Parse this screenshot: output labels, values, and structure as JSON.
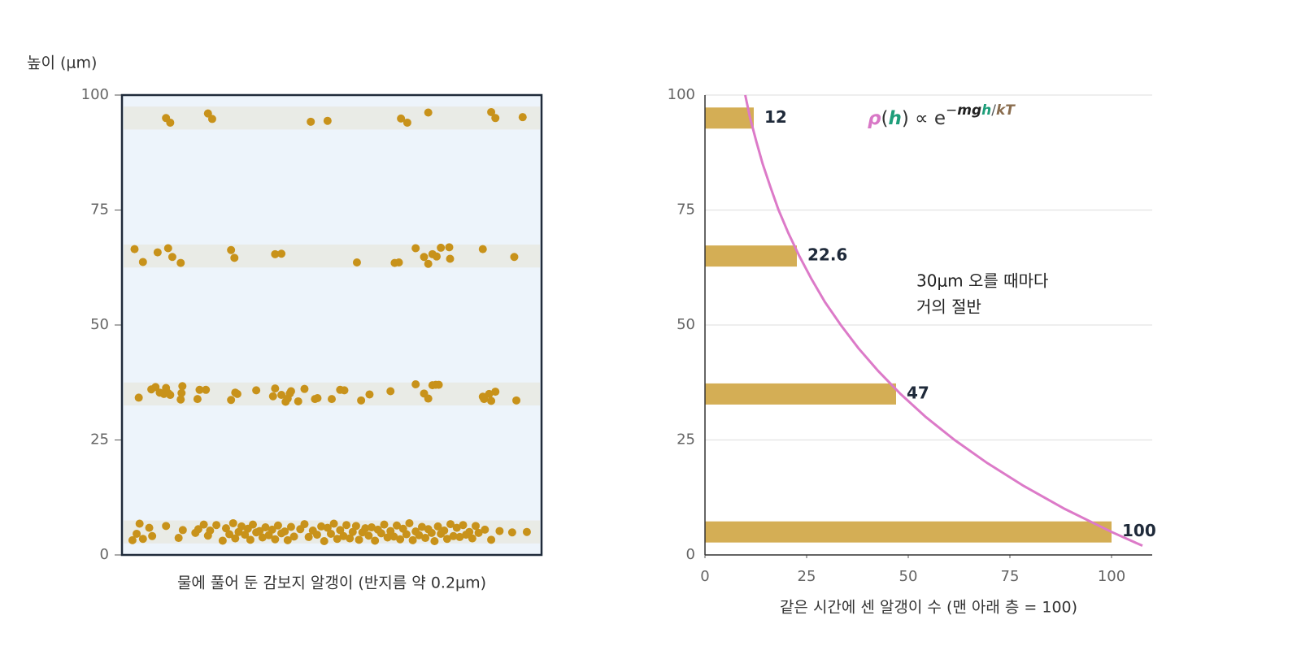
{
  "chart_data": [
    {
      "type": "scatter",
      "ylabel": "높이 (μm)",
      "xlabel": "물에 풀어 둔 감보지 알갱이 (반지름 약 0.2μm)",
      "xlim": [
        0,
        100
      ],
      "ylim": [
        0,
        100
      ],
      "yticks": [
        0,
        25,
        50,
        75,
        100
      ],
      "color": "#c8921a",
      "background": "#edf4fb",
      "band_color": "#e9ebe6",
      "bands": [
        [
          2.5,
          7.5
        ],
        [
          32.5,
          37.5
        ],
        [
          62.5,
          67.5
        ],
        [
          92.5,
          97.5
        ]
      ],
      "x": [
        10.5,
        11.5,
        20.5,
        21.5,
        45,
        49,
        66.5,
        68,
        73,
        88,
        89,
        95.5,
        3,
        5,
        8.5,
        11,
        12,
        14,
        26,
        26.8,
        36.5,
        38,
        56,
        65,
        66,
        70,
        72,
        73,
        74,
        75,
        76,
        78,
        78.2,
        86,
        93.5,
        4,
        7,
        8,
        9,
        10,
        10.5,
        11,
        11.5,
        14,
        14.2,
        14.4,
        18,
        18.5,
        20,
        26,
        27,
        27.5,
        32,
        36,
        36.5,
        38,
        39,
        39.5,
        40,
        40.3,
        42,
        43.5,
        46,
        46.6,
        50,
        52,
        53,
        57,
        59,
        64,
        70,
        72,
        73,
        74,
        74.8,
        75.5,
        86,
        86.3,
        87.5,
        88,
        89,
        94,
        2.5,
        3.5,
        4.2,
        5.0,
        6.5,
        7.2,
        10.5,
        13.5,
        14.5,
        17.5,
        18.2,
        19.5,
        20.5,
        21.0,
        22.5,
        24.0,
        24.8,
        25.6,
        26.5,
        27.0,
        27.8,
        28.5,
        29.3,
        30.0,
        30.6,
        31.2,
        32.0,
        32.8,
        33.5,
        34.2,
        35.0,
        35.8,
        36.5,
        37.2,
        38.0,
        38.8,
        39.5,
        40.3,
        41.0,
        42.5,
        43.5,
        44.5,
        45.5,
        46.5,
        47.5,
        48.2,
        49.0,
        49.8,
        50.5,
        51.3,
        52.0,
        52.8,
        53.5,
        54.3,
        55.0,
        55.8,
        56.5,
        57.3,
        58.0,
        58.8,
        59.5,
        60.3,
        61.0,
        61.8,
        62.5,
        63.3,
        64.0,
        64.8,
        65.5,
        66.3,
        67.0,
        67.8,
        68.5,
        69.3,
        70.0,
        70.8,
        71.5,
        72.3,
        73.0,
        73.8,
        74.5,
        75.3,
        76.0,
        76.8,
        77.5,
        78.3,
        79.0,
        79.8,
        80.5,
        81.3,
        82.0,
        82.8,
        83.5,
        84.3,
        85.0,
        86.5,
        88.0,
        90.0,
        93.0,
        96.5
      ],
      "y": [
        95.0,
        94.0,
        96.0,
        94.8,
        94.2,
        94.4,
        94.9,
        94.0,
        96.2,
        96.3,
        95.0,
        95.2,
        66.5,
        63.7,
        65.8,
        66.7,
        64.8,
        63.5,
        66.3,
        64.6,
        65.4,
        65.5,
        63.6,
        63.5,
        63.6,
        66.7,
        64.8,
        63.3,
        65.4,
        64.9,
        66.8,
        66.9,
        64.4,
        66.5,
        64.8,
        34.2,
        36.0,
        36.5,
        35.3,
        35.0,
        36.3,
        35.2,
        34.8,
        33.8,
        35.2,
        36.7,
        33.9,
        35.9,
        35.9,
        33.7,
        35.3,
        35.0,
        35.8,
        34.5,
        36.2,
        34.8,
        33.3,
        34.0,
        35.1,
        35.6,
        33.4,
        36.1,
        33.9,
        34.1,
        33.9,
        35.9,
        35.8,
        33.6,
        34.9,
        35.6,
        37.1,
        35.1,
        34.0,
        36.9,
        37.0,
        37.0,
        34.4,
        33.9,
        35.0,
        33.5,
        35.5,
        33.6,
        3.2,
        4.6,
        6.8,
        3.5,
        5.9,
        4.1,
        6.3,
        3.7,
        5.4,
        4.8,
        5.6,
        6.6,
        4.2,
        5.3,
        6.5,
        3.1,
        5.8,
        4.5,
        6.9,
        3.6,
        5.0,
        6.2,
        4.4,
        5.7,
        3.3,
        6.6,
        4.9,
        5.2,
        3.8,
        6.0,
        4.3,
        5.5,
        3.4,
        6.4,
        4.7,
        5.1,
        3.2,
        6.1,
        4.0,
        5.6,
        6.7,
        3.9,
        5.3,
        4.4,
        6.2,
        3.0,
        5.9,
        4.6,
        6.8,
        3.5,
        5.4,
        4.1,
        6.5,
        3.6,
        5.0,
        6.3,
        3.3,
        4.9,
        5.8,
        4.2,
        6.0,
        3.1,
        5.5,
        4.7,
        6.6,
        3.8,
        5.2,
        4.0,
        6.4,
        3.4,
        5.7,
        4.5,
        6.9,
        3.2,
        5.1,
        4.3,
        6.1,
        3.7,
        5.6,
        4.8,
        3.0,
        6.2,
        4.6,
        5.3,
        3.5,
        6.7,
        4.1,
        5.9,
        3.9,
        6.5,
        4.4,
        5.0,
        3.6,
        6.3,
        4.8,
        5.5,
        3.3,
        5.2,
        4.9,
        5.0
      ]
    },
    {
      "type": "barh",
      "xlabel": "같은 시간에 센 알갱이 수 (맨 아래 층 = 100)",
      "xlim": [
        0,
        110
      ],
      "xticks": [
        0,
        25,
        50,
        75,
        100
      ],
      "ylim": [
        0,
        100
      ],
      "yticks": [
        0,
        25,
        50,
        75,
        100
      ],
      "grid": true,
      "heights": [
        5,
        35,
        65,
        95
      ],
      "values": [
        100,
        47,
        22.6,
        12
      ],
      "color": "#d4ae55",
      "curve": {
        "color": "#dc7ac8",
        "x": [
          9.9,
          11.1,
          12.6,
          14.2,
          16.1,
          18.1,
          20.5,
          23.2,
          26.2,
          29.5,
          33.4,
          37.7,
          42.6,
          48.1,
          54.3,
          61.4,
          69.4,
          78.4,
          88.5,
          100,
          107.6
        ],
        "y": [
          100,
          95,
          90,
          85,
          80,
          75,
          70,
          65,
          60,
          55,
          50,
          45,
          40,
          35,
          30,
          25,
          20,
          15,
          10,
          5,
          2
        ]
      },
      "formula": [
        {
          "text": "ρ",
          "color": "#d877c6",
          "style": "bold-italic"
        },
        {
          "text": "(",
          "color": "#333333"
        },
        {
          "text": "h",
          "color": "#1e9e7a",
          "style": "bold-italic"
        },
        {
          "text": ") ∝ e",
          "color": "#333333"
        },
        {
          "text": "−",
          "color": "#222222",
          "sup": true
        },
        {
          "text": "mg",
          "color": "#222222",
          "style": "bold-italic",
          "sup": true
        },
        {
          "text": "h",
          "color": "#1e9e7a",
          "style": "bold-italic",
          "sup": true
        },
        {
          "text": "/",
          "color": "#555555",
          "sup": true
        },
        {
          "text": "kT",
          "color": "#8a6d4f",
          "style": "bold-italic",
          "sup": true
        }
      ],
      "annotation": [
        "30μm 오를 때마다",
        "거의 절반"
      ]
    }
  ]
}
